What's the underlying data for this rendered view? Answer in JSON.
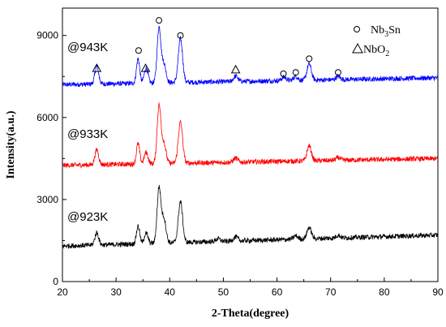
{
  "chart_data": {
    "type": "line",
    "xlabel": "2-Theta(degree)",
    "ylabel": "Intensity(a.u.)",
    "xlim": [
      20,
      90
    ],
    "ylim": [
      0,
      10000
    ],
    "xticks": [
      20,
      30,
      40,
      50,
      60,
      70,
      80,
      90
    ],
    "yticks": [
      0,
      3000,
      6000,
      9000
    ],
    "grid": false,
    "legend": {
      "placement": "top-right",
      "entries": [
        {
          "symbol": "circle",
          "main": "Nb",
          "sub": "3",
          "tail": "Sn"
        },
        {
          "symbol": "triangle",
          "main": "NbO",
          "sub": "2",
          "tail": ""
        }
      ]
    },
    "series": [
      {
        "name": "@943K",
        "color": "#0000ff",
        "baseline": 7200,
        "end": 7450,
        "noise": 90,
        "peaks": [
          [
            26.4,
            650,
            0.35
          ],
          [
            34.1,
            900,
            0.3
          ],
          [
            35.6,
            550,
            0.35
          ],
          [
            38.0,
            2000,
            0.35
          ],
          [
            38.9,
            700,
            0.4
          ],
          [
            42.0,
            1600,
            0.4
          ],
          [
            52.3,
            200,
            0.4
          ],
          [
            61.3,
            130,
            0.4
          ],
          [
            63.5,
            150,
            0.4
          ],
          [
            66.0,
            600,
            0.4
          ],
          [
            71.4,
            120,
            0.4
          ]
        ]
      },
      {
        "name": "@933K",
        "color": "#ff0000",
        "baseline": 4250,
        "end": 4500,
        "noise": 90,
        "peaks": [
          [
            26.4,
            550,
            0.35
          ],
          [
            34.1,
            750,
            0.3
          ],
          [
            35.6,
            420,
            0.35
          ],
          [
            38.0,
            2100,
            0.35
          ],
          [
            38.9,
            750,
            0.4
          ],
          [
            42.0,
            1500,
            0.4
          ],
          [
            52.3,
            150,
            0.4
          ],
          [
            66.0,
            550,
            0.4
          ],
          [
            71.4,
            100,
            0.4
          ]
        ]
      },
      {
        "name": "@923K",
        "color": "#000000",
        "baseline": 1300,
        "end": 1700,
        "noise": 90,
        "peaks": [
          [
            26.4,
            450,
            0.35
          ],
          [
            34.1,
            650,
            0.3
          ],
          [
            35.6,
            380,
            0.35
          ],
          [
            38.0,
            2000,
            0.35
          ],
          [
            38.9,
            900,
            0.4
          ],
          [
            42.0,
            1500,
            0.4
          ],
          [
            49.0,
            100,
            0.4
          ],
          [
            52.3,
            150,
            0.4
          ],
          [
            63.5,
            120,
            0.4
          ],
          [
            66.0,
            420,
            0.4
          ],
          [
            71.4,
            100,
            0.4
          ]
        ]
      }
    ],
    "annotations": {
      "nb3sn_markers": [
        [
          34.2,
          8450
        ],
        [
          38.0,
          9550
        ],
        [
          42.0,
          9000
        ],
        [
          61.2,
          7600
        ],
        [
          63.5,
          7650
        ],
        [
          66.0,
          8150
        ],
        [
          71.4,
          7650
        ]
      ],
      "nbo2_markers": [
        [
          26.4,
          7800
        ],
        [
          35.5,
          7800
        ],
        [
          52.3,
          7750
        ]
      ]
    }
  }
}
